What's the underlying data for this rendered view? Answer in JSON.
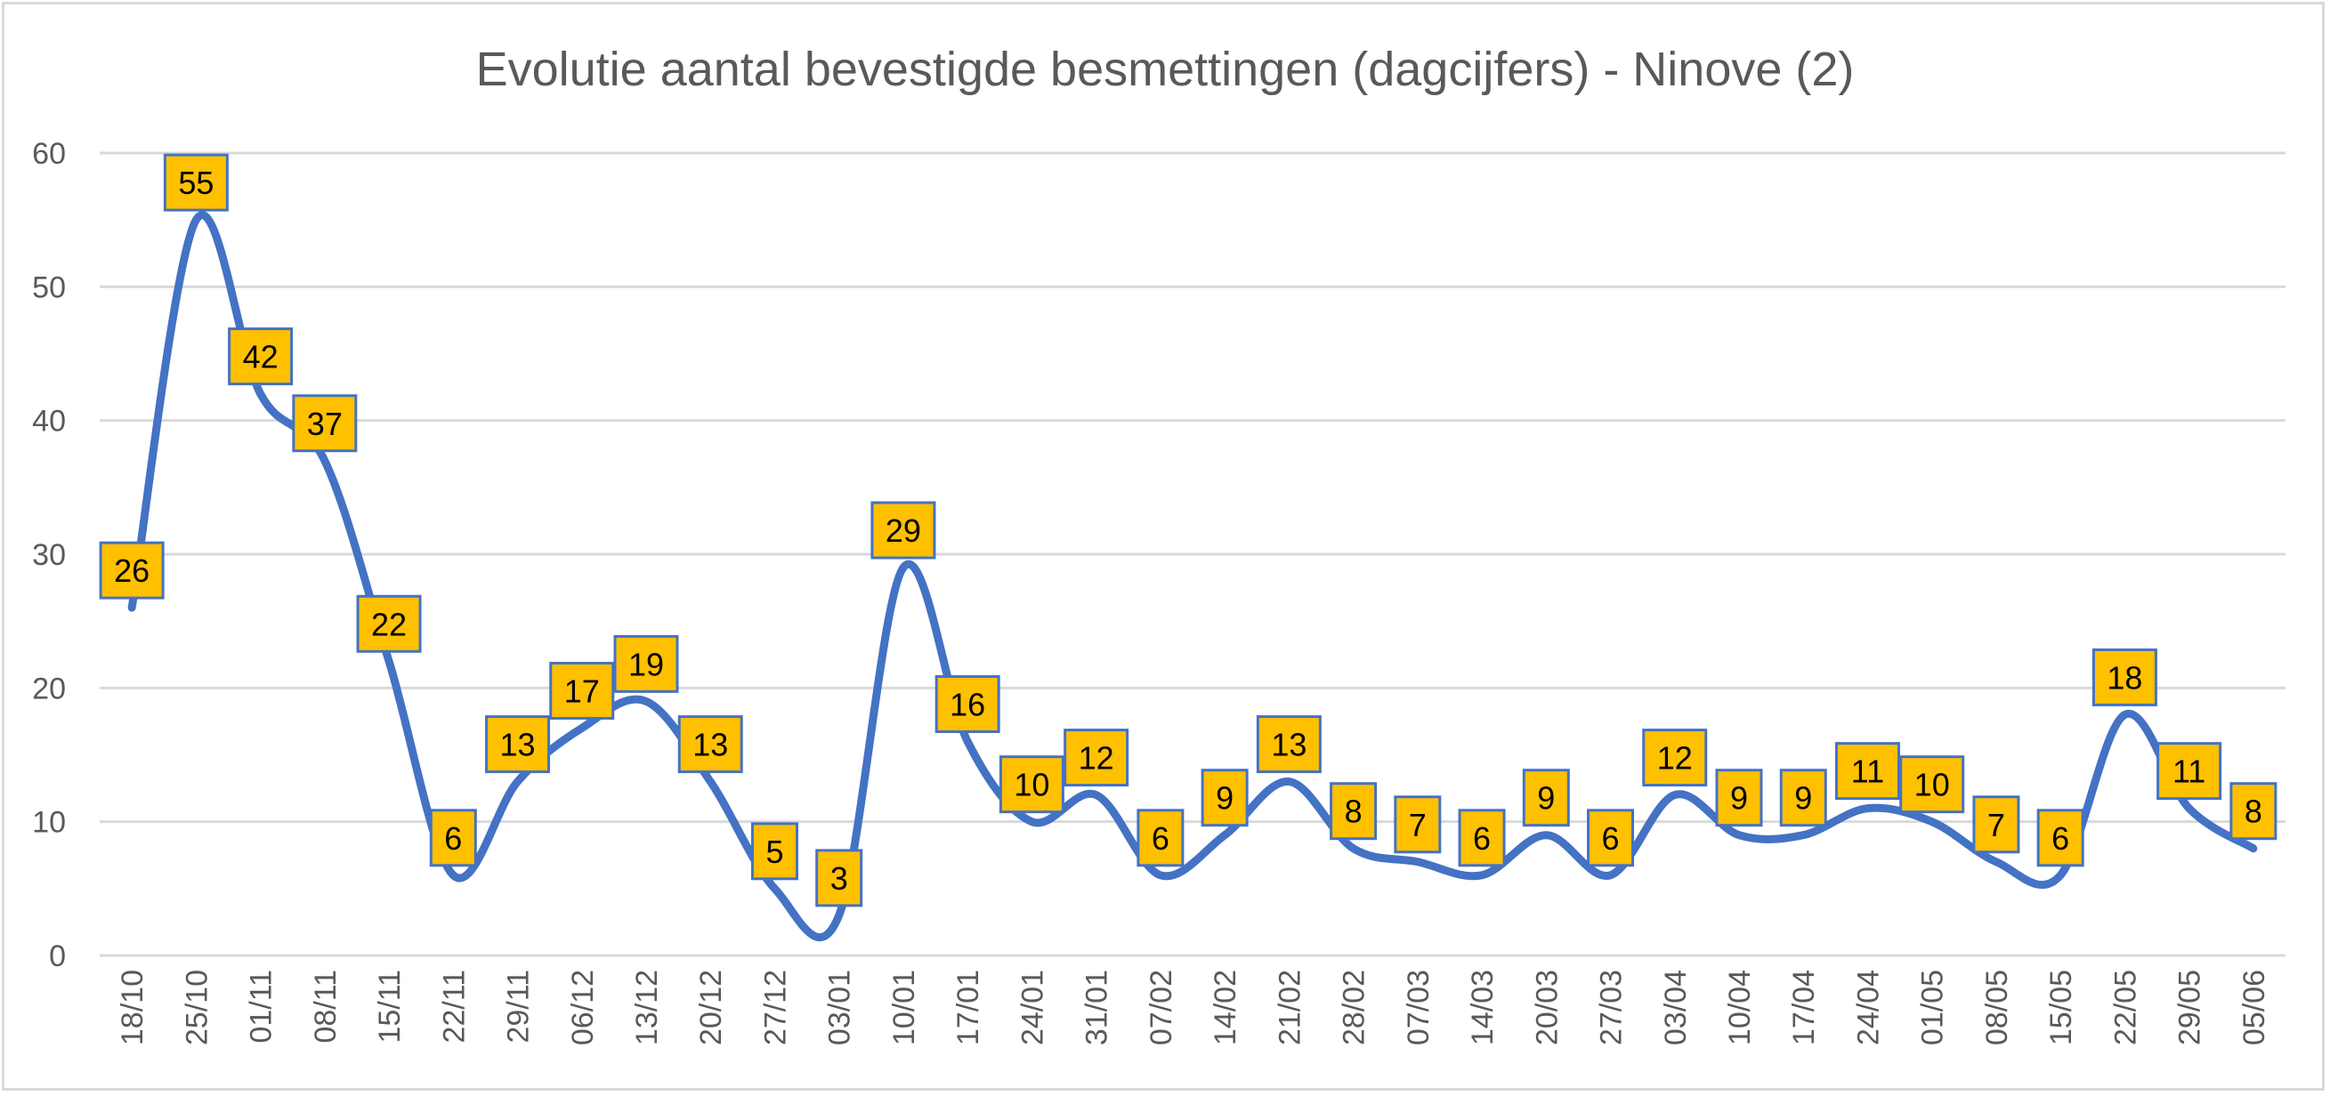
{
  "chart_data": {
    "type": "line",
    "title": "Evolutie aantal bevestigde besmettingen (dagcijfers) - Ninove (2)",
    "xlabel": "",
    "ylabel": "",
    "ylim": [
      0,
      60
    ],
    "yticks": [
      "0",
      "10",
      "20",
      "30",
      "40",
      "50",
      "60"
    ],
    "grid": true,
    "smooth": true,
    "line_color": "#4472C4",
    "label_fill": "#FFC000",
    "label_border": "#4472C4",
    "categories": [
      "18/10",
      "25/10",
      "01/11",
      "08/11",
      "15/11",
      "22/11",
      "29/11",
      "06/12",
      "13/12",
      "20/12",
      "27/12",
      "03/01",
      "10/01",
      "17/01",
      "24/01",
      "31/01",
      "07/02",
      "14/02",
      "21/02",
      "28/02",
      "07/03",
      "14/03",
      "20/03",
      "27/03",
      "03/04",
      "10/04",
      "17/04",
      "24/04",
      "01/05",
      "08/05",
      "15/05",
      "22/05",
      "29/05",
      "05/06"
    ],
    "series": [
      {
        "name": "Ninove",
        "values": [
          26,
          55,
          42,
          37,
          22,
          6,
          13,
          17,
          19,
          13,
          5,
          3,
          29,
          16,
          10,
          12,
          6,
          9,
          13,
          8,
          7,
          6,
          9,
          6,
          12,
          9,
          9,
          11,
          10,
          7,
          6,
          18,
          11,
          8
        ]
      }
    ]
  }
}
